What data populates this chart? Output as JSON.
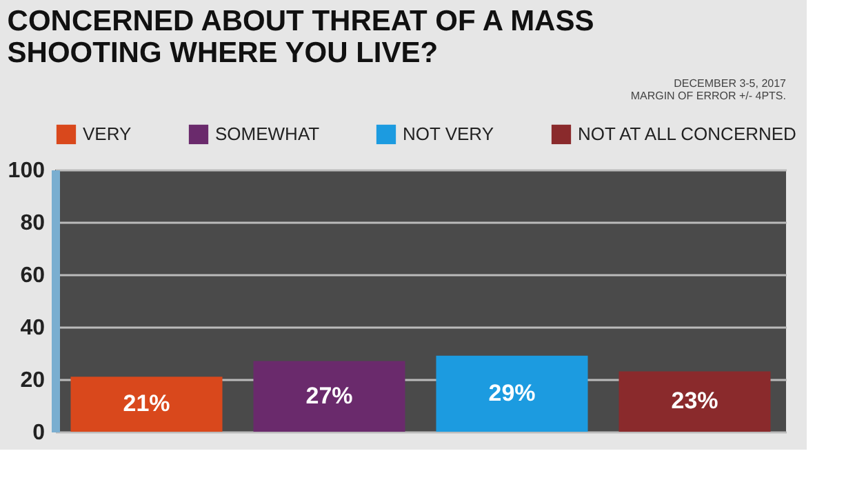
{
  "chart_data": {
    "type": "bar",
    "title": "CONCERNED ABOUT THREAT OF A MASS SHOOTING WHERE YOU LIVE?",
    "annotations": [
      "DECEMBER 3-5, 2017",
      "MARGIN OF ERROR +/- 4PTS."
    ],
    "categories": [
      null,
      null,
      null,
      null
    ],
    "series": [
      {
        "name": "VERY",
        "color": "#d9481c",
        "values": [
          21,
          null,
          null,
          null
        ],
        "value_labels": [
          "21%",
          null,
          null,
          null
        ]
      },
      {
        "name": "SOMEWHAT",
        "color": "#6a2a6c",
        "values": [
          null,
          27,
          null,
          null
        ],
        "value_labels": [
          null,
          "27%",
          null,
          null
        ]
      },
      {
        "name": "NOT VERY",
        "color": "#1c9be0",
        "values": [
          null,
          null,
          29,
          null
        ],
        "value_labels": [
          null,
          null,
          "29%",
          null
        ]
      },
      {
        "name": "NOT AT ALL CONCERNED",
        "color": "#8a2a2c",
        "values": [
          null,
          null,
          null,
          23
        ],
        "value_labels": [
          null,
          null,
          null,
          "23%"
        ]
      }
    ],
    "ylim": [
      0,
      100
    ],
    "yticks": [
      0,
      20,
      40,
      60,
      80,
      100
    ],
    "grid": "y",
    "legend": "top",
    "tick_labels": "y"
  }
}
